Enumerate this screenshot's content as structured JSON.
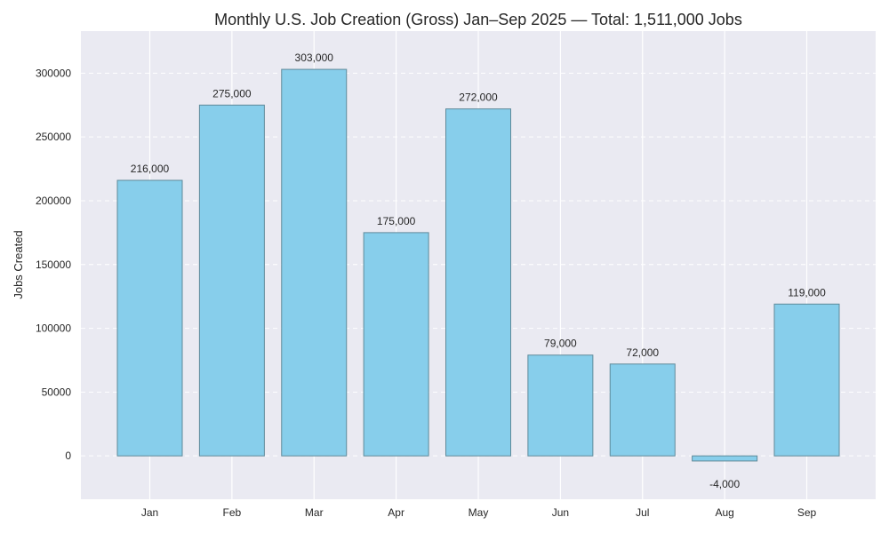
{
  "chart_data": {
    "type": "bar",
    "title": "Monthly U.S. Job Creation (Gross) Jan–Sep 2025 — Total: 1,511,000 Jobs",
    "xlabel": "",
    "ylabel": "Jobs Created",
    "categories": [
      "Jan",
      "Feb",
      "Mar",
      "Apr",
      "May",
      "Jun",
      "Jul",
      "Aug",
      "Sep"
    ],
    "values": [
      216000,
      275000,
      303000,
      175000,
      272000,
      79000,
      72000,
      -4000,
      119000
    ],
    "data_labels": [
      "216,000",
      "275,000",
      "303,000",
      "175,000",
      "272,000",
      "79,000",
      "72,000",
      "-4,000",
      "119,000"
    ],
    "ylim": [
      -34000,
      333000
    ],
    "yticks": [
      0,
      50000,
      100000,
      150000,
      200000,
      250000,
      300000
    ],
    "ytick_labels": [
      "0",
      "50000",
      "100000",
      "150000",
      "200000",
      "250000",
      "300000"
    ],
    "grid": true,
    "colors": {
      "bar_fill": "#87CEEB",
      "bar_edge": "#5f8a9a",
      "plot_bg": "#eaeaf2",
      "grid": "#ffffff"
    }
  }
}
